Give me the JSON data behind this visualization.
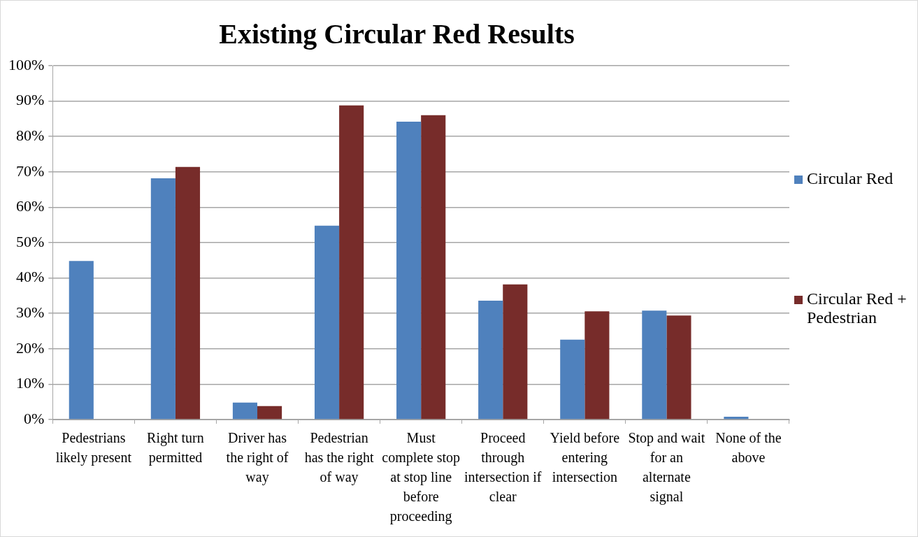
{
  "chart_data": {
    "type": "bar",
    "title": "Existing Circular Red Results",
    "categories": [
      "Pedestrians likely present",
      "Right turn permitted",
      "Driver has the right of way",
      "Pedestrian has the right of way",
      "Must complete stop at stop line before proceeding",
      "Proceed through intersection if clear",
      "Yield before entering intersection",
      "Stop and wait for an alternate signal",
      "None of the above"
    ],
    "series": [
      {
        "name": "Circular Red",
        "color": "#4f81bd",
        "values": [
          44.8,
          68.2,
          4.8,
          54.8,
          84.2,
          33.6,
          22.6,
          30.8,
          0.8
        ]
      },
      {
        "name": "Circular Red + Pedestrian",
        "color": "#772c2a",
        "values": [
          0,
          71.4,
          3.8,
          88.8,
          86,
          38.2,
          30.6,
          29.4,
          0
        ]
      }
    ],
    "ylim": [
      0,
      100
    ],
    "yticks": [
      {
        "value": 0,
        "label": "0%"
      },
      {
        "value": 10,
        "label": "10%"
      },
      {
        "value": 20,
        "label": "20%"
      },
      {
        "value": 30,
        "label": "30%"
      },
      {
        "value": 40,
        "label": "40%"
      },
      {
        "value": 50,
        "label": "50%"
      },
      {
        "value": 60,
        "label": "60%"
      },
      {
        "value": 70,
        "label": "70%"
      },
      {
        "value": 80,
        "label": "80%"
      },
      {
        "value": 90,
        "label": "90%"
      },
      {
        "value": 100,
        "label": "100%"
      }
    ],
    "grid": "y",
    "legend": "right"
  }
}
